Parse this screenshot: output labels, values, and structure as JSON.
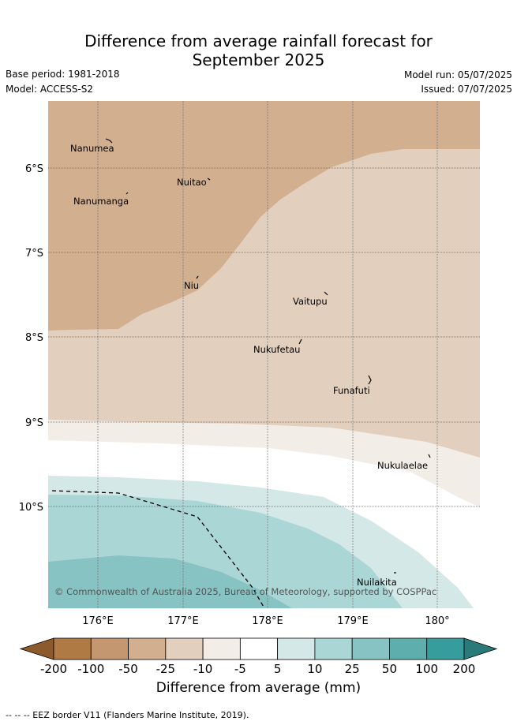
{
  "title_line1": "Difference from average rainfall forecast for",
  "title_line2": "September 2025",
  "meta": {
    "base_period": "Base period: 1981-2018",
    "model": "Model: ACCESS-S2",
    "model_run": "Model run: 05/07/2025",
    "issued": "Issued: 07/07/2025"
  },
  "map": {
    "lat_labels": [
      "6°S",
      "7°S",
      "8°S",
      "9°S",
      "10°S"
    ],
    "lon_labels": [
      "176°E",
      "177°E",
      "178°E",
      "179°E",
      "180°"
    ],
    "places": [
      {
        "name": "Nanumea"
      },
      {
        "name": "Nuitao"
      },
      {
        "name": "Nanumanga"
      },
      {
        "name": "Niu"
      },
      {
        "name": "Vaitupu"
      },
      {
        "name": "Nukufetau"
      },
      {
        "name": "Funafuti"
      },
      {
        "name": "Nukulaelae"
      },
      {
        "name": "Nuilakita"
      }
    ],
    "copyright": "© Commonwealth of Australia 2025, Bureau of Meteorology, supported by COSPPac"
  },
  "colorbar": {
    "ticks": [
      "-200",
      "-100",
      "-50",
      "-25",
      "-10",
      "-5",
      "5",
      "10",
      "25",
      "50",
      "100",
      "200"
    ],
    "colors": [
      "#8c5a2b",
      "#b07a44",
      "#c49770",
      "#d2b08f",
      "#e2cfbd",
      "#f2ede7",
      "#ffffff",
      "#d4e8e8",
      "#abd6d6",
      "#86c3c2",
      "#5eaeae",
      "#369d9c",
      "#2b7a7a"
    ],
    "label": "Difference from average (mm)"
  },
  "footnote": "--  --  -- EEZ border V11 (Flanders Marine Institute, 2019)."
}
